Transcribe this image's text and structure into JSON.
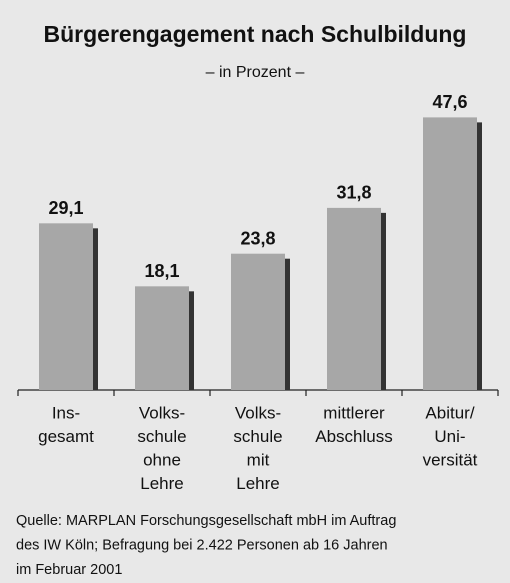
{
  "chart_data": {
    "type": "bar",
    "title": "Bürgerengagement nach Schulbildung",
    "subtitle": "– in Prozent –",
    "categories": [
      [
        "Ins-",
        "gesamt"
      ],
      [
        "Volks-",
        "schule",
        "ohne",
        "Lehre"
      ],
      [
        "Volks-",
        "schule",
        "mit",
        "Lehre"
      ],
      [
        "mittlerer",
        "Abschluss"
      ],
      [
        "Abitur/",
        "Uni-",
        "versität"
      ]
    ],
    "values": [
      29.1,
      18.1,
      23.8,
      31.8,
      47.6
    ],
    "value_labels": [
      "29,1",
      "18,1",
      "23,8",
      "31,8",
      "47,6"
    ],
    "color": "#a7a7a7",
    "ylim": [
      0,
      55
    ],
    "source": [
      "Quelle: MARPLAN Forschungsgesellschaft mbH im Auftrag",
      "des IW Köln; Befragung bei 2.422 Personen ab 16 Jahren",
      "im Februar 2001"
    ]
  }
}
